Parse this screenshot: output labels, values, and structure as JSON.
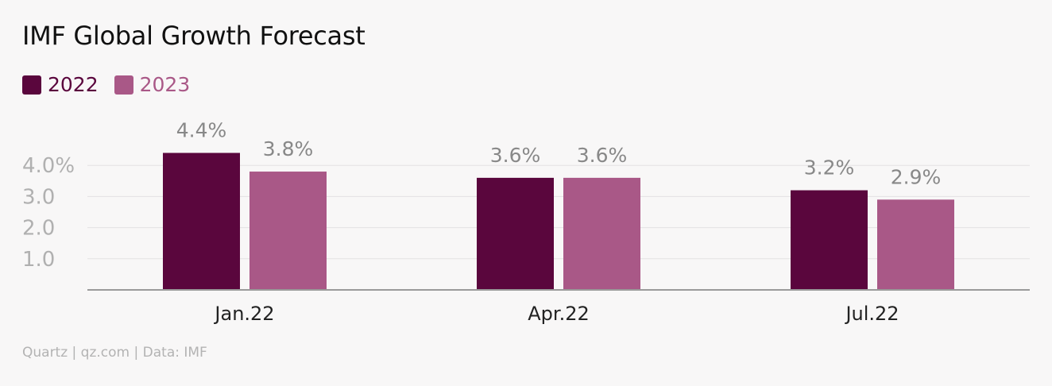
{
  "title": "IMF Global Growth Forecast",
  "source": "Quartz | qz.com | Data: IMF",
  "colors": {
    "series_2022": "#5a063d",
    "series_2023": "#a95887",
    "axis": "#9a9a9a",
    "grid": "#e4e2e3",
    "tick_label": "#b0b0b0",
    "data_label": "#888888",
    "category_label": "#222222"
  },
  "chart_data": {
    "type": "bar",
    "title": "IMF Global Growth Forecast",
    "categories": [
      "Jan.22",
      "Apr.22",
      "Jul.22"
    ],
    "series": [
      {
        "name": "2022",
        "values": [
          4.4,
          3.6,
          3.2
        ],
        "labels": [
          "4.4%",
          "3.6%",
          "3.2%"
        ]
      },
      {
        "name": "2023",
        "values": [
          3.8,
          3.6,
          2.9
        ],
        "labels": [
          "3.8%",
          "3.6%",
          "2.9%"
        ]
      }
    ],
    "yticks": [
      1.0,
      2.0,
      3.0,
      4.0
    ],
    "ytick_labels": [
      "1.0",
      "2.0",
      "3.0",
      "4.0%"
    ],
    "ylim": [
      0,
      4.4
    ],
    "xlabel": "",
    "ylabel": "",
    "grid": true,
    "legend": "top-left"
  }
}
